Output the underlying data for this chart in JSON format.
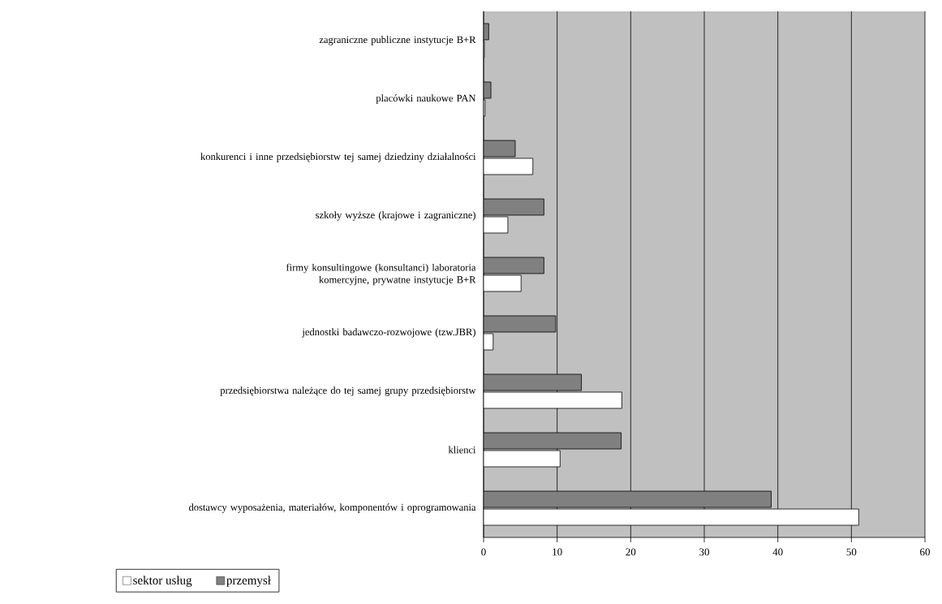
{
  "chart_data": {
    "type": "bar",
    "orientation": "horizontal",
    "categories": [
      "zagraniczne publiczne instytucje B+R",
      "placówki naukowe PAN",
      "konkurenci i inne przedsiębiorstw tej samej dziedziny działalności",
      "szkoły wyższe (krajowe i zagraniczne)",
      "firmy konsultingowe (konsultanci) laboratoria komercyjne, prywatne instytucje B+R",
      "jednostki badawczo-rozwojowe (tzw.JBR)",
      "przedsiębiorstwa należące do tej samej grupy przedsiębiorstw",
      "klienci",
      "dostawcy wyposażenia, materiałów, komponentów i oprogramowania"
    ],
    "series": [
      {
        "name": "sektor usług",
        "color": "#ffffff",
        "values": [
          0.1,
          0.2,
          6.7,
          3.3,
          5.1,
          1.3,
          18.8,
          10.4,
          51.0
        ]
      },
      {
        "name": "przemysł",
        "color": "#808080",
        "values": [
          0.7,
          1.0,
          4.3,
          8.2,
          8.2,
          9.8,
          13.3,
          18.7,
          39.1
        ]
      }
    ],
    "xlim": [
      0,
      60
    ],
    "xticks": [
      0,
      10,
      20,
      30,
      40,
      50,
      60
    ],
    "grid": "x",
    "legend": "bottom left"
  }
}
